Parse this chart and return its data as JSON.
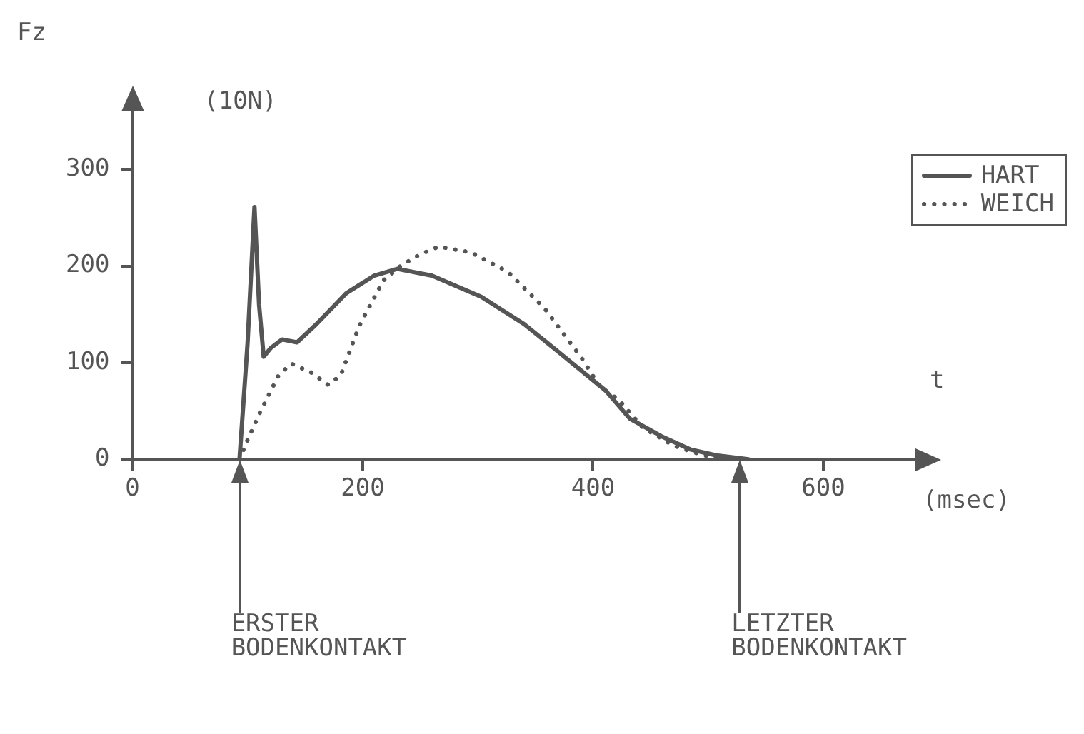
{
  "chart_data": {
    "type": "line",
    "ylabel": "Fz",
    "xlabel": "t",
    "annotations": [
      "(10N)",
      "(msec)",
      "ERSTER BODENKONTAKT",
      "LETZTER BODENKONTAKT"
    ],
    "xlim": [
      0,
      680
    ],
    "xticks": [
      0,
      200,
      400,
      600
    ],
    "ylim": [
      0,
      360
    ],
    "yticks": [
      0,
      100,
      200,
      300
    ],
    "grid": false,
    "legend": "top right",
    "marker": "none",
    "series": [
      {
        "name": "HART",
        "color": "#555555",
        "line_style": "solid",
        "x": [
          93,
          100,
          106,
          110,
          114,
          120,
          130,
          143,
          160,
          186,
          210,
          230,
          260,
          303,
          340,
          368,
          411,
          432,
          459,
          485,
          507,
          535
        ],
        "values": [
          0,
          120,
          261,
          160,
          106,
          115,
          124,
          121,
          140,
          172,
          190,
          197,
          190,
          168,
          140,
          113,
          71,
          42,
          24,
          10,
          4,
          0
        ]
      },
      {
        "name": "WEICH",
        "color": "#555555",
        "line_style": "dotted",
        "x": [
          93,
          100,
          111,
          127,
          138,
          155,
          170,
          181,
          197,
          218,
          234,
          250,
          266,
          294,
          326,
          358,
          390,
          406,
          422,
          443,
          470,
          496,
          520
        ],
        "values": [
          0,
          20,
          49,
          87,
          99,
          90,
          77,
          87,
          138,
          185,
          201,
          212,
          220,
          214,
          194,
          156,
          105,
          75,
          62,
          33,
          14,
          4,
          0
        ]
      }
    ]
  }
}
